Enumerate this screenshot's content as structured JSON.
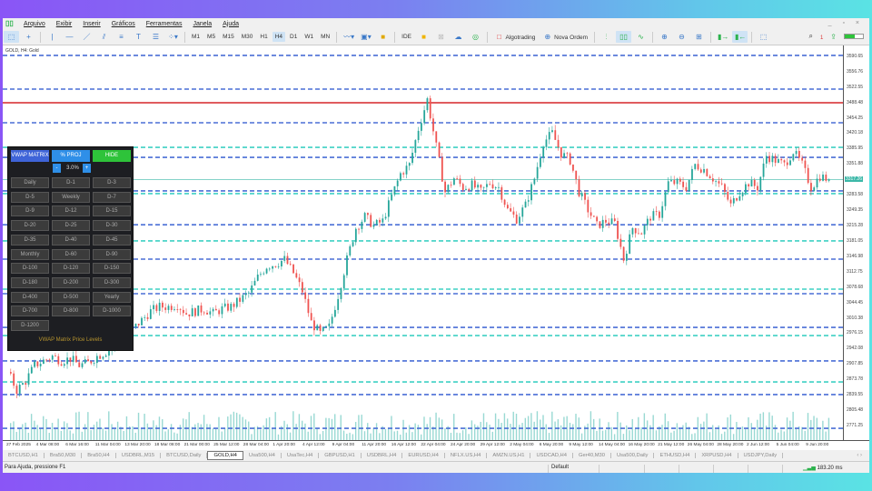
{
  "menu": [
    "Arquivo",
    "Exibir",
    "Inserir",
    "Gráficos",
    "Ferramentas",
    "Janela",
    "Ajuda"
  ],
  "toolbar": {
    "timeframes": [
      "M1",
      "M5",
      "M15",
      "M30",
      "H1",
      "H4",
      "D1",
      "W1",
      "MN"
    ],
    "active_timeframe": "H4",
    "ide": "IDE",
    "algotrading": "Algotrading",
    "new_order": "Nova Ordem",
    "notification_count": "1"
  },
  "chart": {
    "symbol_line": "GOLD, H4:  Gold",
    "current_price_label": "3317.26"
  },
  "panel": {
    "vwap_matrix": "VWAP MATRIX",
    "proj": "% PROJ",
    "hide": "HIDE",
    "minus": "-",
    "plus": "+",
    "pct": "3.0%",
    "buttons": [
      "Daily",
      "D-1",
      "D-3",
      "D-5",
      "Weekly",
      "D-7",
      "D-9",
      "D-12",
      "D-15",
      "D-20",
      "D-25",
      "D-30",
      "D-35",
      "D-40",
      "D-45",
      "Monthly",
      "D-60",
      "D-90",
      "D-100",
      "D-120",
      "D-150",
      "D-180",
      "D-200",
      "D-300",
      "D-400",
      "D-500",
      "Yearly",
      "D-700",
      "D-800",
      "D-1000",
      "D-1200"
    ],
    "footer": "VWAP Matrix Price Levels",
    "colors": {
      "vwap": "#3f64d8",
      "proj": "#2f8fe8",
      "hide": "#2ec33a",
      "footer": "#b8952e"
    }
  },
  "chart_data": {
    "type": "candlestick",
    "symbol": "GOLD",
    "timeframe": "H4",
    "price_labels": [
      "3590.65",
      "3556.76",
      "3522.55",
      "3488.48",
      "3454.25",
      "3420.18",
      "3385.95",
      "3351.88",
      "3317.26",
      "3283.58",
      "3249.35",
      "3215.28",
      "3181.05",
      "3146.98",
      "3112.75",
      "3078.68",
      "3044.45",
      "3010.38",
      "2976.15",
      "2942.08",
      "2907.85",
      "2873.78",
      "2839.55",
      "2805.48",
      "2771.25"
    ],
    "ylim": [
      2771.25,
      3590.65
    ],
    "time_labels": [
      "27 Feb 2025",
      "4 Mar 08:00",
      "6 Mar 16:00",
      "11 Mar 04:00",
      "13 Mar 20:00",
      "18 Mar 08:00",
      "21 Mar 00:00",
      "25 Mar 12:00",
      "28 Mar 04:00",
      "1 Apr 20:00",
      "4 Apr 12:00",
      "9 Apr 04:00",
      "11 Apr 20:00",
      "16 Apr 12:00",
      "22 Apr 04:00",
      "24 Apr 20:00",
      "29 Apr 12:00",
      "2 May 04:00",
      "6 May 20:00",
      "9 May 12:00",
      "14 May 04:00",
      "16 May 20:00",
      "21 May 12:00",
      "26 May 04:00",
      "28 May 20:00",
      "2 Jun 12:00",
      "5 Jun 04:00",
      "9 Jun 20:00"
    ],
    "close_path": [
      2890,
      2850,
      2870,
      2905,
      2915,
      2925,
      2915,
      2920,
      2905,
      2910,
      2925,
      2935,
      2950,
      2975,
      2985,
      3005,
      3025,
      3035,
      3035,
      3040,
      3020,
      3025,
      3030,
      3020,
      3030,
      3035,
      3050,
      3065,
      3100,
      3125,
      3130,
      3140,
      3110,
      3070,
      3000,
      2975,
      2990,
      3060,
      3140,
      3210,
      3235,
      3215,
      3225,
      3280,
      3330,
      3350,
      3430,
      3495,
      3390,
      3290,
      3320,
      3300,
      3305,
      3290,
      3310,
      3300,
      3250,
      3230,
      3260,
      3320,
      3400,
      3420,
      3375,
      3360,
      3290,
      3250,
      3215,
      3225,
      3220,
      3140,
      3210,
      3200,
      3235,
      3240,
      3310,
      3310,
      3300,
      3350,
      3340,
      3320,
      3300,
      3260,
      3290,
      3310,
      3300,
      3370,
      3360,
      3350,
      3380,
      3350,
      3300,
      3325,
      3317
    ],
    "current_price": 3317.26,
    "levels": {
      "blue": [
        3592.7,
        3518,
        3443.3,
        3366.6,
        3292,
        3217,
        3140.6,
        3063.9,
        2989,
        2914.6,
        2839.9,
        2765
      ],
      "cyan": [
        3388.8,
        3286,
        3181,
        3074,
        2971,
        2868
      ],
      "red": [
        3487.7
      ]
    },
    "colors": {
      "bull": "#26a69a",
      "bear": "#ef5350",
      "blue_level": "#4a6fd6",
      "cyan_level": "#3fd1c4",
      "red_level": "#d62728",
      "volume": "#7fcfc8"
    }
  },
  "tabs": [
    "BTCUSD,H1",
    "Bra50,M30",
    "Bra50,H4",
    "USDBRL,M15",
    "BTCUSD,Daily",
    "GOLD,H4",
    "Usa500,H4",
    "UsaTec,H4",
    "GBPUSD,H1",
    "USDBRL,H4",
    "EURUSD,H4",
    "NFLX.US,H4",
    "AMZN.US,H1",
    "USDCAD,H4",
    "Ger40,M30",
    "Usa500,Daily",
    "ETHUSD,H4",
    "XRPUSD,H4",
    "USDJPY,Daily"
  ],
  "active_tab": "GOLD,H4",
  "status": {
    "help": "Para Ajuda, pressione F1",
    "profile": "Default",
    "ping": "183.20 ms"
  }
}
